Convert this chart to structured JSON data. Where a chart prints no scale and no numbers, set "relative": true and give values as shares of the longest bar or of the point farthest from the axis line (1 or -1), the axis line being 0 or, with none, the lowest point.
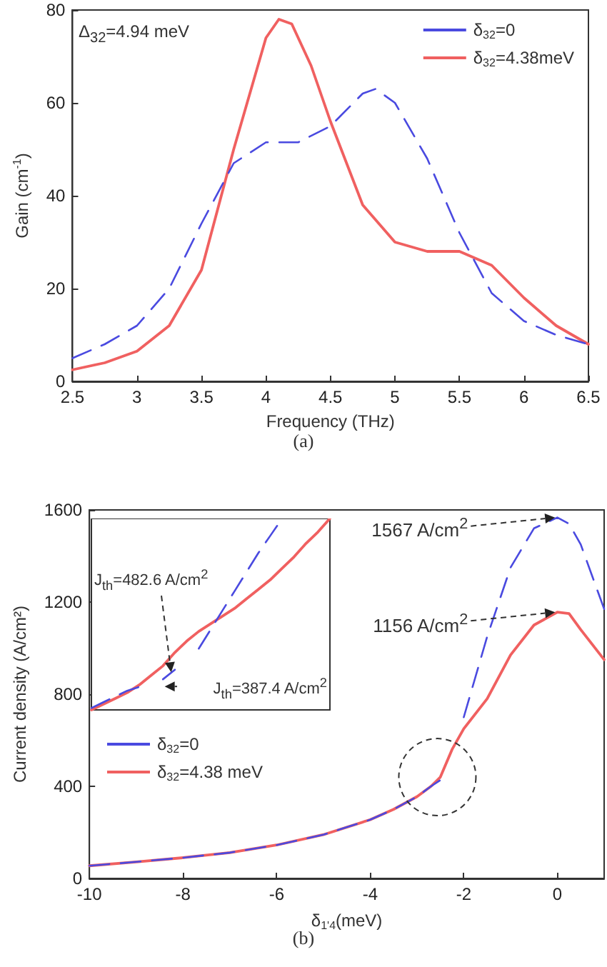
{
  "chart_data": [
    {
      "type": "line",
      "xlabel": "Frequency (THz)",
      "ylabel": "Gain (cm$^{-1}$)",
      "xlim": [
        2.5,
        6.5
      ],
      "xticks": [
        2.5,
        3,
        3.5,
        4,
        4.5,
        5,
        5.5,
        6,
        6.5
      ],
      "ylim": [
        0,
        80
      ],
      "yticks": [
        0,
        20,
        40,
        60,
        80
      ],
      "legend": "top right",
      "grid": false,
      "annotations": [
        "Δ$_{32}$=4.94 meV",
        "(a)"
      ],
      "series": [
        {
          "name": "δ$_{32}$=0",
          "color": "#4a4ae0",
          "line_style": "dashed",
          "x": [
            2.5,
            2.75,
            3.0,
            3.25,
            3.5,
            3.75,
            4.0,
            4.25,
            4.5,
            4.75,
            4.85,
            5.0,
            5.25,
            5.5,
            5.75,
            6.0,
            6.25,
            6.5
          ],
          "values": [
            5,
            8,
            12,
            20,
            34,
            47,
            51.5,
            51.5,
            55,
            62,
            63,
            60,
            48,
            32,
            19,
            13,
            10,
            8
          ]
        },
        {
          "name": "δ$_{32}$=4.38meV",
          "color": "#f06060",
          "line_style": "solid",
          "x": [
            2.5,
            2.75,
            3.0,
            3.25,
            3.5,
            3.75,
            4.0,
            4.1,
            4.2,
            4.35,
            4.5,
            4.75,
            5.0,
            5.25,
            5.5,
            5.75,
            6.0,
            6.25,
            6.5
          ],
          "values": [
            2.5,
            4,
            6.5,
            12,
            24,
            50,
            74,
            78,
            77,
            68,
            56,
            38,
            30,
            28,
            28,
            25,
            18,
            12,
            8
          ]
        }
      ]
    },
    {
      "type": "line",
      "xlabel": "δ$_{1'4}$(meV)",
      "ylabel": "Current density (A/cm²)",
      "xlim": [
        -10,
        1
      ],
      "xticks": [
        -10,
        -8,
        -6,
        -4,
        -2,
        0
      ],
      "ylim": [
        0,
        1600
      ],
      "yticks": [
        0,
        400,
        800,
        1200,
        1600
      ],
      "legend": "left",
      "grid": false,
      "annotations": [
        {
          "text": "1567 A/cm$^{2}$",
          "x": 0,
          "y": 1567
        },
        {
          "text": "1156 A/cm$^{2}$",
          "x": 0,
          "y": 1156
        },
        "(b)"
      ],
      "series": [
        {
          "name": "δ$_{32}$=0",
          "color": "#4a4ae0",
          "line_style": "dashed",
          "x": [
            -10,
            -9,
            -8,
            -7,
            -6,
            -5,
            -4,
            -3.5,
            -3,
            -2.7,
            -2.4,
            -2.3,
            -2,
            -1.5,
            -1,
            -0.5,
            0,
            0.25,
            0.5,
            1
          ],
          "values": [
            55,
            72,
            90,
            112,
            145,
            190,
            255,
            300,
            355,
            400,
            440,
            null,
            700,
            1050,
            1350,
            1520,
            1567,
            1540,
            1450,
            1170
          ]
        },
        {
          "name": "δ$_{32}$=4.38 meV",
          "color": "#f06060",
          "line_style": "solid",
          "x": [
            -10,
            -9,
            -8,
            -7,
            -6,
            -5,
            -4,
            -3.5,
            -3,
            -2.7,
            -2.5,
            -2.25,
            -2,
            -1.5,
            -1,
            -0.5,
            0,
            0.25,
            0.5,
            1
          ],
          "values": [
            55,
            72,
            90,
            112,
            145,
            190,
            255,
            300,
            355,
            400,
            440,
            560,
            650,
            780,
            970,
            1100,
            1156,
            1150,
            1080,
            950
          ]
        }
      ]
    },
    {
      "type": "line",
      "relative": true,
      "categories": [
        null,
        null,
        null,
        null,
        null,
        null,
        null,
        null,
        null,
        null,
        null,
        null,
        null,
        null,
        null,
        null,
        null,
        null,
        null,
        null,
        null
      ],
      "annotations": [
        "J$_{th}$=482.6 A/cm$^{2}$",
        "J$_{th}$=387.4 A/cm$^{2}$"
      ],
      "series": [
        {
          "color": "#4a4ae0",
          "line_style": "dashed",
          "values": [
            0.01,
            0.04,
            0.07,
            0.1,
            0.12,
            null,
            0.16,
            0.21,
            null,
            0.32,
            0.42,
            0.52,
            0.62,
            0.72,
            0.82,
            0.91,
            1.0,
            null,
            null,
            null,
            null
          ]
        },
        {
          "color": "#f06060",
          "line_style": "solid",
          "values": [
            0,
            0.03,
            0.06,
            0.09,
            0.13,
            0.18,
            0.23,
            0.3,
            0.36,
            0.41,
            0.45,
            0.49,
            0.53,
            0.58,
            0.63,
            0.68,
            0.74,
            0.8,
            0.87,
            0.93,
            1.0
          ]
        }
      ]
    }
  ]
}
